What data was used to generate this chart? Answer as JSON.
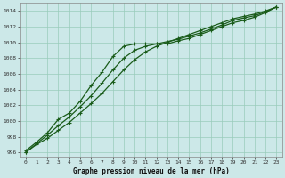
{
  "title": "Graphe pression niveau de la mer (hPa)",
  "background_color": "#cce8e8",
  "grid_color": "#99ccbb",
  "line_color": "#1a5c1a",
  "xlim": [
    -0.5,
    23.5
  ],
  "ylim": [
    995.5,
    1015.0
  ],
  "yticks": [
    996,
    998,
    1000,
    1002,
    1004,
    1006,
    1008,
    1010,
    1012,
    1014
  ],
  "xticks": [
    0,
    1,
    2,
    3,
    4,
    5,
    6,
    7,
    8,
    9,
    10,
    11,
    12,
    13,
    14,
    15,
    16,
    17,
    18,
    19,
    20,
    21,
    22,
    23
  ],
  "x": [
    0,
    1,
    2,
    3,
    4,
    5,
    6,
    7,
    8,
    9,
    10,
    11,
    12,
    13,
    14,
    15,
    16,
    17,
    18,
    19,
    20,
    21,
    22,
    23
  ],
  "y_linear": [
    996.0,
    997.0,
    997.8,
    998.8,
    999.8,
    1001.0,
    1002.2,
    1003.5,
    1005.0,
    1006.5,
    1007.8,
    1008.8,
    1009.5,
    1010.0,
    1010.5,
    1011.0,
    1011.5,
    1012.0,
    1012.5,
    1013.0,
    1013.3,
    1013.6,
    1014.0,
    1014.5
  ],
  "y_upper": [
    996.2,
    997.3,
    998.5,
    1000.2,
    1001.0,
    1002.5,
    1004.5,
    1006.2,
    1008.2,
    1009.5,
    1009.8,
    1009.8,
    1009.8,
    1009.8,
    1010.2,
    1010.5,
    1011.0,
    1011.5,
    1012.0,
    1012.5,
    1012.8,
    1013.2,
    1013.8,
    1014.5
  ],
  "y_mid": [
    996.0,
    997.1,
    998.2,
    999.4,
    1000.5,
    1001.8,
    1003.2,
    1004.8,
    1006.5,
    1008.0,
    1009.0,
    1009.5,
    1009.8,
    1010.1,
    1010.4,
    1010.8,
    1011.2,
    1011.7,
    1012.2,
    1012.8,
    1013.1,
    1013.4,
    1013.9,
    1014.5
  ]
}
